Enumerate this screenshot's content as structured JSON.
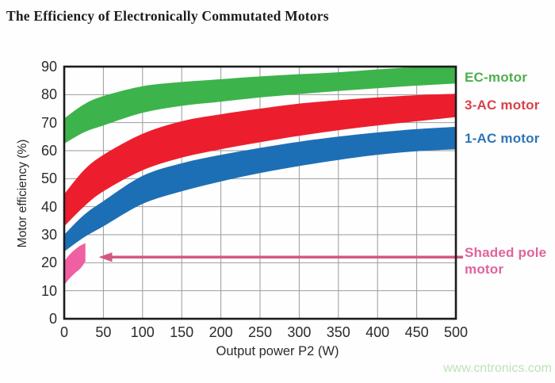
{
  "watermark": "www.cntronics.com",
  "chart_data": {
    "type": "area",
    "title": "The Efficiency of Electronically Commutated Motors",
    "xlabel": "Output power P2 (W)",
    "ylabel": "Motor efficiency (%)",
    "xlim": [
      0,
      500
    ],
    "ylim": [
      0,
      90
    ],
    "x_ticks": [
      0,
      50,
      100,
      150,
      200,
      250,
      300,
      350,
      400,
      450,
      500
    ],
    "y_ticks": [
      0,
      10,
      20,
      30,
      40,
      50,
      60,
      70,
      80,
      90
    ],
    "grid": true,
    "grid_color": "#9b9b9b",
    "border_color": "#1c1c1c",
    "legend_position": "right",
    "series": [
      {
        "name": "EC-motor",
        "type": "band",
        "color": "#3cb44b",
        "label_color": "#4fae4e",
        "x": [
          0,
          25,
          50,
          100,
          150,
          200,
          250,
          300,
          350,
          400,
          450,
          500
        ],
        "upper": [
          71.5,
          76.5,
          79.5,
          83,
          84.5,
          85.5,
          86.5,
          87.3,
          88,
          89,
          89.8,
          90
        ],
        "lower": [
          62.5,
          66.5,
          69,
          73.5,
          76,
          77.5,
          79,
          80.2,
          81.3,
          82.3,
          83.2,
          84
        ]
      },
      {
        "name": "3-AC motor",
        "type": "band",
        "color": "#ec1e2e",
        "label_color": "#d8414b",
        "x": [
          0,
          25,
          50,
          100,
          150,
          200,
          250,
          300,
          350,
          400,
          450,
          500
        ],
        "upper": [
          44.5,
          53,
          58.5,
          66,
          70.5,
          73,
          75,
          76.8,
          78,
          79,
          79.8,
          80.3
        ],
        "lower": [
          33,
          40,
          45.5,
          53,
          57.5,
          60.5,
          63,
          65.3,
          67.3,
          69,
          70.5,
          72
        ]
      },
      {
        "name": "1-AC motor",
        "type": "band",
        "color": "#1d6fb5",
        "label_color": "#2c75b6",
        "x": [
          0,
          25,
          50,
          100,
          150,
          200,
          250,
          300,
          350,
          400,
          450,
          500
        ],
        "upper": [
          30,
          37,
          42,
          51,
          55.5,
          58.5,
          61,
          63.2,
          65,
          66.5,
          67.7,
          68.5
        ],
        "lower": [
          24,
          29,
          33,
          41,
          45.5,
          49,
          52,
          54.5,
          56.7,
          58.5,
          59.8,
          60.5
        ]
      },
      {
        "name": "Shaded pole motor",
        "type": "band",
        "color": "#ef5fa1",
        "label_color": "#e0639c",
        "x": [
          0,
          5,
          10,
          15,
          20,
          24,
          27
        ],
        "upper": [
          20.5,
          22.3,
          23.8,
          25,
          26,
          26.6,
          27
        ],
        "lower": [
          12,
          13.8,
          15.3,
          16.6,
          17.8,
          19.2,
          20.5
        ]
      }
    ],
    "annotation": {
      "type": "arrow",
      "from_label": "Shaded pole motor",
      "y_pct": 22,
      "x_to_w": 44,
      "color": "#d4597f"
    }
  }
}
